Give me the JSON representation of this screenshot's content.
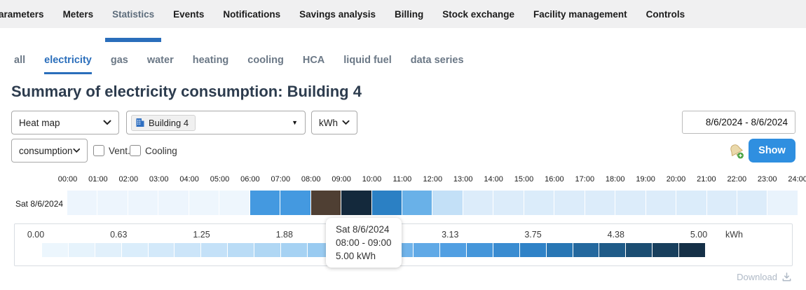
{
  "nav": {
    "items": [
      {
        "label": "Parameters",
        "active": false
      },
      {
        "label": "Meters",
        "active": false
      },
      {
        "label": "Statistics",
        "active": true
      },
      {
        "label": "Events",
        "active": false
      },
      {
        "label": "Notifications",
        "active": false
      },
      {
        "label": "Savings analysis",
        "active": false
      },
      {
        "label": "Billing",
        "active": false
      },
      {
        "label": "Stock exchange",
        "active": false
      },
      {
        "label": "Facility management",
        "active": false
      },
      {
        "label": "Controls",
        "active": false
      }
    ]
  },
  "tabs": {
    "items": [
      {
        "label": "all",
        "active": false
      },
      {
        "label": "electricity",
        "active": true
      },
      {
        "label": "gas",
        "active": false
      },
      {
        "label": "water",
        "active": false
      },
      {
        "label": "heating",
        "active": false
      },
      {
        "label": "cooling",
        "active": false
      },
      {
        "label": "HCA",
        "active": false
      },
      {
        "label": "liquid fuel",
        "active": false
      },
      {
        "label": "data series",
        "active": false
      }
    ]
  },
  "page": {
    "title": "Summary of electricity consumption: Building 4"
  },
  "controls": {
    "chart_type": {
      "value": "Heat map"
    },
    "meter": {
      "value": "Building 4"
    },
    "unit": {
      "value": "kWh"
    },
    "date_range": {
      "value": "8/6/2024 - 8/6/2024"
    },
    "quantity": {
      "value": "consumption"
    },
    "vent_label": "Vent.",
    "vent_checked": false,
    "cooling_label": "Cooling",
    "cooling_checked": false,
    "show_label": "Show"
  },
  "heatmap": {
    "row_label": "Sat 8/6/2024",
    "time_labels": [
      "00:00",
      "01:00",
      "02:00",
      "03:00",
      "04:00",
      "05:00",
      "06:00",
      "07:00",
      "08:00",
      "09:00",
      "10:00",
      "11:00",
      "12:00",
      "13:00",
      "14:00",
      "15:00",
      "16:00",
      "17:00",
      "18:00",
      "19:00",
      "20:00",
      "21:00",
      "22:00",
      "23:00",
      "24:00"
    ],
    "hovered_cell_index": 8,
    "hover_highlight_color": "#4f3f33",
    "cells": [
      {
        "interval": "00:00 - 01:00",
        "color": "#edf5fd"
      },
      {
        "interval": "01:00 - 02:00",
        "color": "#edf5fd"
      },
      {
        "interval": "02:00 - 03:00",
        "color": "#edf5fd"
      },
      {
        "interval": "03:00 - 04:00",
        "color": "#edf5fd"
      },
      {
        "interval": "04:00 - 05:00",
        "color": "#eef6fd"
      },
      {
        "interval": "05:00 - 06:00",
        "color": "#eef6fd"
      },
      {
        "interval": "06:00 - 07:00",
        "color": "#4499e0"
      },
      {
        "interval": "07:00 - 08:00",
        "color": "#4499e0"
      },
      {
        "interval": "08:00 - 09:00",
        "color": "#4f3f33"
      },
      {
        "interval": "09:00 - 10:00",
        "color": "#14293c"
      },
      {
        "interval": "10:00 - 11:00",
        "color": "#2b80c4"
      },
      {
        "interval": "11:00 - 12:00",
        "color": "#69b1e8"
      },
      {
        "interval": "12:00 - 13:00",
        "color": "#c3e0f7"
      },
      {
        "interval": "13:00 - 14:00",
        "color": "#dcecfa"
      },
      {
        "interval": "14:00 - 15:00",
        "color": "#dcecfa"
      },
      {
        "interval": "15:00 - 16:00",
        "color": "#dbecfa"
      },
      {
        "interval": "16:00 - 17:00",
        "color": "#dcecfa"
      },
      {
        "interval": "17:00 - 18:00",
        "color": "#dcecfa"
      },
      {
        "interval": "18:00 - 19:00",
        "color": "#dcecfa"
      },
      {
        "interval": "19:00 - 20:00",
        "color": "#dcecfa"
      },
      {
        "interval": "20:00 - 21:00",
        "color": "#dbecfa"
      },
      {
        "interval": "21:00 - 22:00",
        "color": "#dcecfa"
      },
      {
        "interval": "22:00 - 23:00",
        "color": "#dcecfa"
      },
      {
        "interval": "23:00 - 24:00",
        "color": "#e9f3fc"
      }
    ]
  },
  "tooltip": {
    "line1": "Sat 8/6/2024",
    "line2": "08:00 - 09:00",
    "line3": "5.00 kWh"
  },
  "legend": {
    "tick_labels": [
      "0.00",
      "0.63",
      "1.25",
      "1.88",
      "2.50",
      "3.13",
      "3.75",
      "4.38",
      "5.00"
    ],
    "unit": "kWh",
    "cell_count": 25,
    "color_stops": [
      {
        "at": 0.0,
        "color": "#eff7fd"
      },
      {
        "at": 0.125,
        "color": "#ddeefb"
      },
      {
        "at": 0.25,
        "color": "#c6e2f8"
      },
      {
        "at": 0.375,
        "color": "#a8d3f3"
      },
      {
        "at": 0.5,
        "color": "#7fbdee"
      },
      {
        "at": 0.625,
        "color": "#4f9ee2"
      },
      {
        "at": 0.75,
        "color": "#2c80c5"
      },
      {
        "at": 0.875,
        "color": "#1d5680"
      },
      {
        "at": 1.0,
        "color": "#14293c"
      }
    ]
  },
  "footer": {
    "download_label": "Download"
  },
  "chart_data": {
    "type": "heatmap",
    "title": "Summary of electricity consumption: Building 4",
    "unit": "kWh",
    "rows": [
      "Sat 8/6/2024"
    ],
    "x": [
      "00:00",
      "01:00",
      "02:00",
      "03:00",
      "04:00",
      "05:00",
      "06:00",
      "07:00",
      "08:00",
      "09:00",
      "10:00",
      "11:00",
      "12:00",
      "13:00",
      "14:00",
      "15:00",
      "16:00",
      "17:00",
      "18:00",
      "19:00",
      "20:00",
      "21:00",
      "22:00",
      "23:00"
    ],
    "values": [
      [
        0.1,
        0.1,
        0.1,
        0.1,
        0.1,
        0.1,
        2.7,
        2.7,
        5.0,
        4.9,
        3.1,
        2.2,
        1.1,
        0.6,
        0.6,
        0.6,
        0.6,
        0.6,
        0.6,
        0.6,
        0.6,
        0.6,
        0.6,
        0.2
      ]
    ],
    "values_note": "Values estimated from the 0-5 kWh color scale; 08:00-09:00 is exact (tooltip shows 5.00 kWh). The 08:00-09:00 cell is rendered brown because it is hovered.",
    "scale": {
      "min": 0,
      "max": 5,
      "tick_step": 0.625
    },
    "legend_ticks": [
      0.0,
      0.63,
      1.25,
      1.88,
      2.5,
      3.13,
      3.75,
      4.38,
      5.0
    ],
    "hovered": {
      "row": "Sat 8/6/2024",
      "interval": "08:00 - 09:00",
      "value_kwh": 5.0
    }
  }
}
